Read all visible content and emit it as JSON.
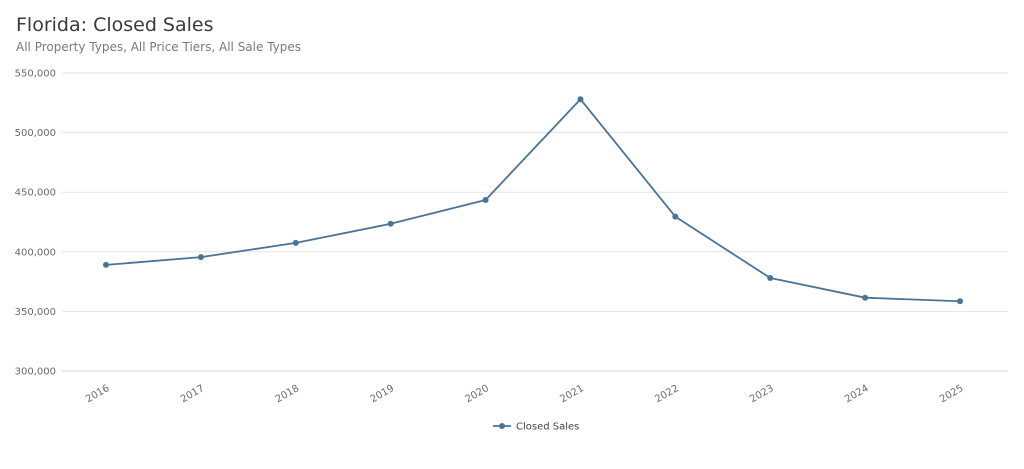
{
  "title": "Florida: Closed Sales",
  "subtitle": "All Property Types, All Price Tiers, All Sale Types",
  "chart_data": {
    "type": "line",
    "x": [
      "2016",
      "2017",
      "2018",
      "2019",
      "2020",
      "2021",
      "2022",
      "2023",
      "2024",
      "2025"
    ],
    "series": [
      {
        "name": "Closed Sales",
        "color": "#4a7396",
        "values": [
          389000,
          395500,
          407500,
          423500,
          443500,
          528000,
          429500,
          378000,
          361500,
          358500
        ]
      }
    ],
    "ylim": [
      300000,
      550000
    ],
    "yticks": [
      "300,000",
      "350,000",
      "400,000",
      "450,000",
      "500,000",
      "550,000"
    ],
    "grid": true,
    "legend": "bottom-center"
  }
}
